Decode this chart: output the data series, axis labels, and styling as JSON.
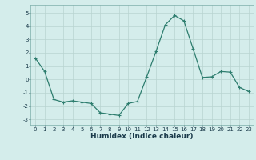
{
  "x": [
    0,
    1,
    2,
    3,
    4,
    5,
    6,
    7,
    8,
    9,
    10,
    11,
    12,
    13,
    14,
    15,
    16,
    17,
    18,
    19,
    20,
    21,
    22,
    23
  ],
  "y": [
    1.6,
    0.6,
    -1.5,
    -1.7,
    -1.6,
    -1.7,
    -1.8,
    -2.5,
    -2.6,
    -2.7,
    -1.8,
    -1.65,
    0.2,
    2.1,
    4.1,
    4.8,
    4.4,
    2.3,
    0.15,
    0.2,
    0.6,
    0.55,
    -0.6,
    -0.9
  ],
  "line_color": "#2d7d6e",
  "marker": "+",
  "markersize": 3.5,
  "linewidth": 0.9,
  "xlabel": "Humidex (Indice chaleur)",
  "xlim": [
    -0.5,
    23.5
  ],
  "ylim": [
    -3.4,
    5.6
  ],
  "yticks": [
    -3,
    -2,
    -1,
    0,
    1,
    2,
    3,
    4,
    5
  ],
  "xticks": [
    0,
    1,
    2,
    3,
    4,
    5,
    6,
    7,
    8,
    9,
    10,
    11,
    12,
    13,
    14,
    15,
    16,
    17,
    18,
    19,
    20,
    21,
    22,
    23
  ],
  "bg_color": "#d4edeb",
  "grid_color": "#b8d4d0",
  "tick_fontsize": 5.0,
  "xlabel_fontsize": 6.5,
  "xlabel_color": "#1a3a4a"
}
